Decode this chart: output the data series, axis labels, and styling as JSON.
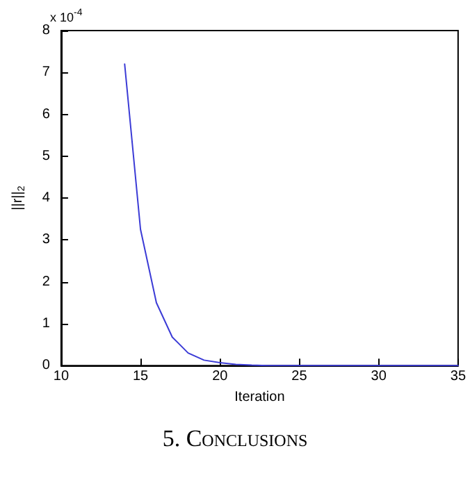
{
  "chart_data": {
    "type": "line",
    "xlabel": "Iteration",
    "ylabel": "||r||$_{2}$",
    "x": [
      14,
      15,
      16,
      17,
      18,
      19,
      20,
      21,
      22,
      23,
      24,
      25,
      26,
      27,
      28,
      29,
      30,
      31,
      32,
      33,
      34,
      35
    ],
    "series": [
      {
        "color": "#3b3bd6",
        "values": [
          7.2,
          3.25,
          1.5,
          0.68,
          0.3,
          0.13,
          0.07,
          0.03,
          0.01,
          0,
          0,
          0,
          0,
          0,
          0,
          0,
          0,
          0,
          0,
          0,
          0,
          0
        ]
      }
    ],
    "xlim": [
      10,
      35
    ],
    "xticks": [
      10,
      15,
      20,
      25,
      30,
      35
    ],
    "ylim": [
      0,
      8
    ],
    "yticks": [
      0,
      1,
      2,
      3,
      4,
      5,
      6,
      7,
      8
    ],
    "annotations": [
      "x 10$^{-4}$",
      "5. Conclusions"
    ],
    "grid": false,
    "marker": "none",
    "line_style": "solid"
  }
}
